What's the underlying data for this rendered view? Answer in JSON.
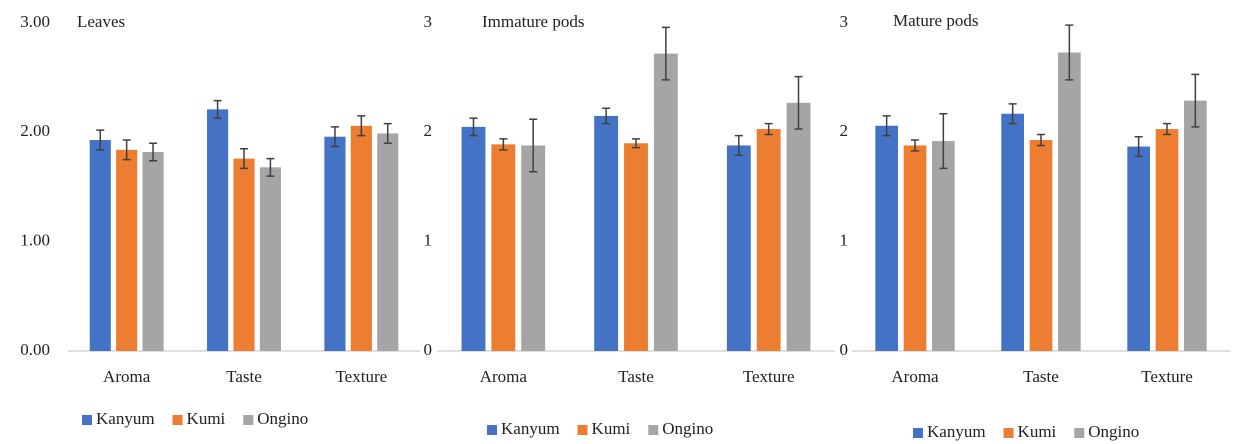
{
  "chart_data": [
    {
      "type": "bar",
      "title": "Leaves",
      "categories": [
        "Aroma",
        "Taste",
        "Texture"
      ],
      "series": [
        {
          "name": "Kanyum",
          "color": "#4472c4",
          "values": [
            1.93,
            2.21,
            1.96
          ],
          "errors": [
            0.09,
            0.08,
            0.09
          ]
        },
        {
          "name": "Kumi",
          "color": "#ed7d31",
          "values": [
            1.84,
            1.76,
            2.06
          ],
          "errors": [
            0.09,
            0.09,
            0.09
          ]
        },
        {
          "name": "Ongino",
          "color": "#a5a5a5",
          "values": [
            1.82,
            1.68,
            1.99
          ],
          "errors": [
            0.08,
            0.08,
            0.09
          ]
        }
      ],
      "ylim": [
        0,
        3
      ],
      "yticks": [
        {
          "value": 0,
          "label": "0.00"
        },
        {
          "value": 1,
          "label": "1.00"
        },
        {
          "value": 2,
          "label": "2.00"
        },
        {
          "value": 3,
          "label": "3.00"
        }
      ],
      "legend": "bottom"
    },
    {
      "type": "bar",
      "title": "Immature pods",
      "categories": [
        "Aroma",
        "Taste",
        "Texture"
      ],
      "series": [
        {
          "name": "Kanyum",
          "color": "#4472c4",
          "values": [
            2.05,
            2.15,
            1.88
          ],
          "errors": [
            0.08,
            0.07,
            0.09
          ]
        },
        {
          "name": "Kumi",
          "color": "#ed7d31",
          "values": [
            1.89,
            1.9,
            2.03
          ],
          "errors": [
            0.05,
            0.04,
            0.05
          ]
        },
        {
          "name": "Ongino",
          "color": "#a5a5a5",
          "values": [
            1.88,
            2.72,
            2.27
          ],
          "errors": [
            0.24,
            0.24,
            0.24
          ]
        }
      ],
      "ylim": [
        0,
        3
      ],
      "yticks": [
        0,
        1,
        2,
        3
      ],
      "legend": "bottom"
    },
    {
      "type": "bar",
      "title": "Mature pods",
      "categories": [
        "Aroma",
        "Taste",
        "Texture"
      ],
      "series": [
        {
          "name": "Kanyum",
          "color": "#4472c4",
          "values": [
            2.06,
            2.17,
            1.87
          ],
          "errors": [
            0.09,
            0.09,
            0.09
          ]
        },
        {
          "name": "Kumi",
          "color": "#ed7d31",
          "values": [
            1.88,
            1.93,
            2.03
          ],
          "errors": [
            0.05,
            0.05,
            0.05
          ]
        },
        {
          "name": "Ongino",
          "color": "#a5a5a5",
          "values": [
            1.92,
            2.73,
            2.29
          ],
          "errors": [
            0.25,
            0.25,
            0.24
          ]
        }
      ],
      "ylim": [
        0,
        3
      ],
      "yticks": [
        0,
        1,
        2,
        3
      ],
      "legend": "bottom"
    }
  ]
}
